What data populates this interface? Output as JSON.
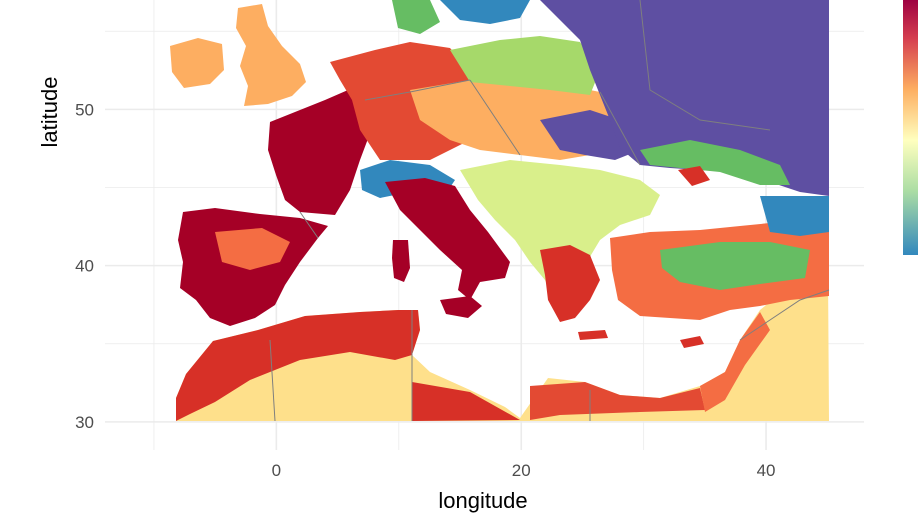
{
  "map": {
    "xlabel": "longitude",
    "ylabel": "latitude",
    "x_ticks": [
      {
        "value": 0,
        "label": "0"
      },
      {
        "value": 20,
        "label": "20"
      },
      {
        "value": 40,
        "label": "40"
      }
    ],
    "y_ticks": [
      {
        "value": 30,
        "label": "30"
      },
      {
        "value": 40,
        "label": "40"
      },
      {
        "value": 50,
        "label": "50"
      }
    ],
    "x_minor": [
      -10,
      10,
      30
    ],
    "y_minor": [
      35,
      45,
      55
    ],
    "xlim": [
      -14,
      48
    ],
    "ylim": [
      28.2,
      57
    ],
    "region_extent": {
      "lon": [
        -10,
        45
      ],
      "lat": [
        30,
        57
      ]
    },
    "palette": "Spectral",
    "colors": {
      "dark_red": "#a50026",
      "red": "#d73027",
      "orange": "#f46d43",
      "light_orange": "#fdae61",
      "tan": "#fee08b",
      "pale_yellow": "#ffffbf",
      "light_green": "#d9ef8b",
      "green": "#66bd63",
      "teal": "#3288bd",
      "dark_blue": "#5e4fa2",
      "gridline": "#ebebeb",
      "border": "#7f7f7f"
    },
    "legend": {
      "type": "colorbar",
      "position": "right",
      "title": "",
      "labels": []
    }
  }
}
